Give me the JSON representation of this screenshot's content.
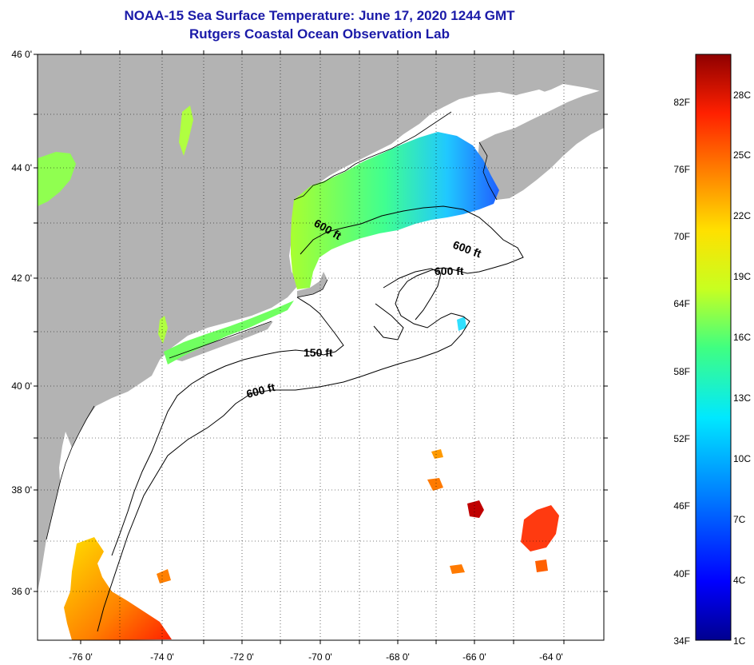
{
  "title": {
    "line1": "NOAA-15 Sea Surface Temperature:  June 17, 2020 1244 GMT",
    "line2": "Rutgers Coastal Ocean Observation Lab"
  },
  "map": {
    "lat_labels": [
      "46 0'",
      "44 0'",
      "42 0'",
      "40 0'",
      "38 0'",
      "36 0'"
    ],
    "lon_labels": [
      "-76 0'",
      "-74 0'",
      "-72 0'",
      "-70 0'",
      "-68 0'",
      "-66 0'",
      "-64 0'"
    ],
    "contour_labels": [
      {
        "text": "600 ft",
        "rotate": 30
      },
      {
        "text": "600 ft",
        "rotate": 20
      },
      {
        "text": "600 ft",
        "rotate": 0
      },
      {
        "text": "150 ft",
        "rotate": 0
      },
      {
        "text": "600 ft",
        "rotate": -15
      }
    ],
    "colors": {
      "land": "#b3b3b3",
      "ocean_nodata": "#ffffff",
      "contour": "#000000"
    }
  },
  "colorbar": {
    "fahrenheit": [
      "82F",
      "76F",
      "70F",
      "64F",
      "58F",
      "52F",
      "46F",
      "40F",
      "34F"
    ],
    "celsius": [
      "28C",
      "25C",
      "22C",
      "19C",
      "16C",
      "13C",
      "10C",
      "7C",
      "4C",
      "1C"
    ],
    "gradient": [
      "#00008f",
      "#0000ff",
      "#0080ff",
      "#00e8ff",
      "#40ff80",
      "#c8ff20",
      "#ffe000",
      "#ff8000",
      "#ff2000",
      "#8f0000"
    ]
  }
}
